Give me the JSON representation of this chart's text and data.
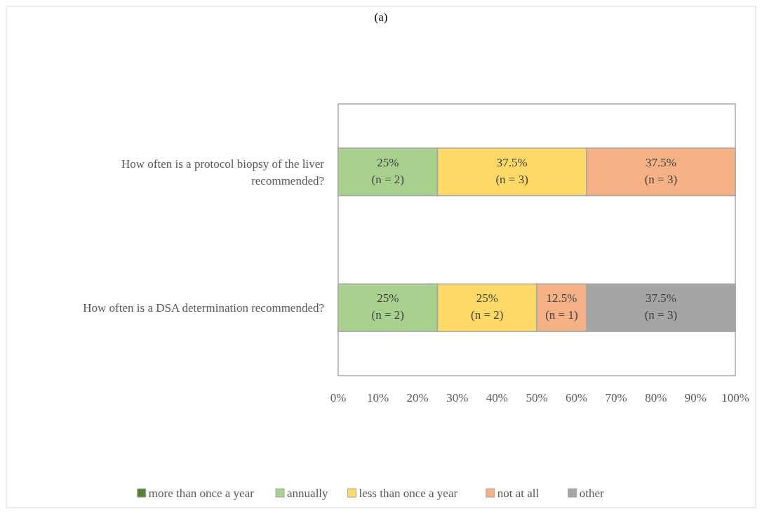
{
  "chart_data": {
    "type": "bar",
    "title": "(a)",
    "orientation": "horizontal",
    "stacked": true,
    "categories": [
      "How often is a protocol biopsy of the liver recommended?",
      "How often is a DSA determination recommended?"
    ],
    "series": [
      {
        "name": "more than once a year",
        "color": "#548235",
        "values": [
          null,
          null
        ]
      },
      {
        "name": "annually",
        "color": "#a9d18e",
        "values": [
          25,
          25
        ],
        "value_labels": [
          "25%\n(n = 2)",
          "25%\n(n = 2)"
        ]
      },
      {
        "name": "less than once a year",
        "color": "#ffd966",
        "values": [
          37.5,
          25
        ],
        "value_labels": [
          "37.5%\n(n = 3)",
          "25%\n(n = 2)"
        ]
      },
      {
        "name": "not at all",
        "color": "#f4b183",
        "values": [
          37.5,
          12.5
        ],
        "value_labels": [
          "37.5%\n(n = 3)",
          "12.5%\n(n = 1)"
        ]
      },
      {
        "name": "other",
        "color": "#a5a5a5",
        "values": [
          null,
          37.5
        ],
        "value_labels": [
          null,
          "37.5%\n(n = 3)"
        ]
      }
    ],
    "xlim": [
      0,
      100
    ],
    "xticks": [
      {
        "value": 0,
        "label": "0%"
      },
      {
        "value": 10,
        "label": "10%"
      },
      {
        "value": 20,
        "label": "20%"
      },
      {
        "value": 30,
        "label": "30%"
      },
      {
        "value": 40,
        "label": "40%"
      },
      {
        "value": 50,
        "label": "50%"
      },
      {
        "value": 60,
        "label": "60%"
      },
      {
        "value": 70,
        "label": "70%"
      },
      {
        "value": 80,
        "label": "80%"
      },
      {
        "value": 90,
        "label": "90%"
      },
      {
        "value": 100,
        "label": "100%"
      }
    ],
    "grid": false,
    "legend": "bottom"
  }
}
